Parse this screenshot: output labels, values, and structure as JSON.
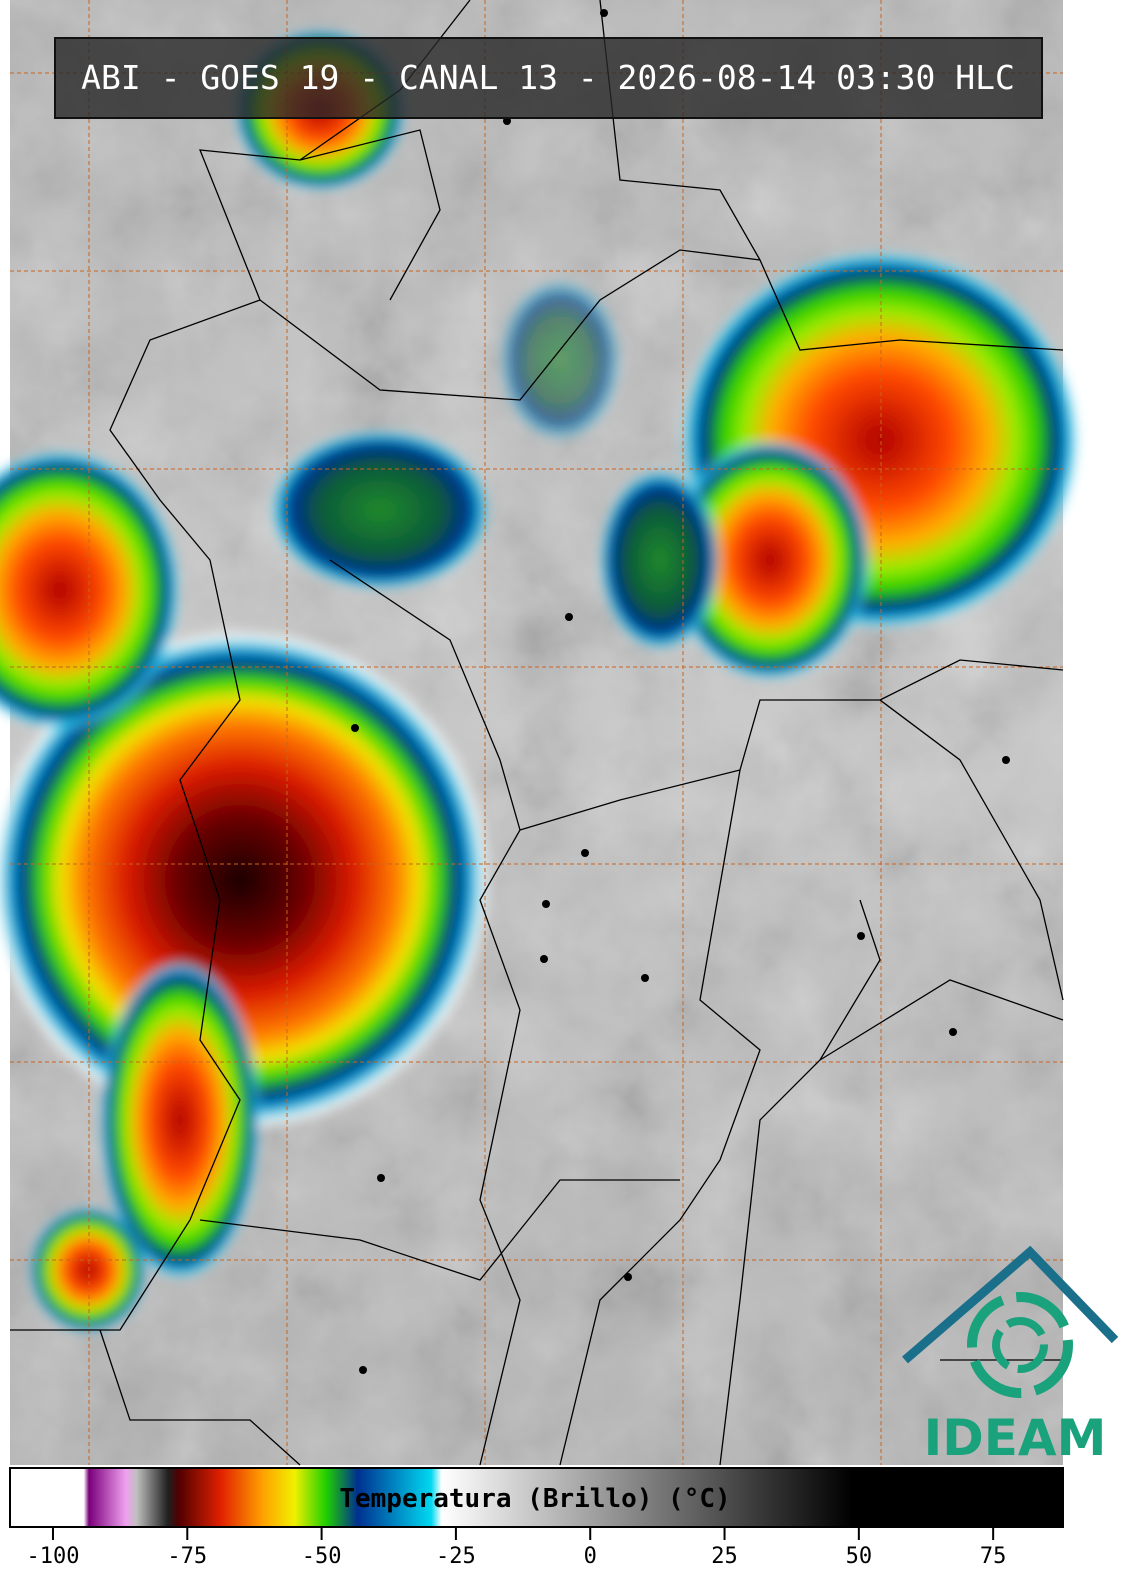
{
  "header": {
    "title": "ABI - GOES 19 - CANAL 13 - 2026-08-14 03:30 HLC"
  },
  "colorbar": {
    "label": "Temperatura (Brillo) (°C)",
    "range": [
      -108,
      88
    ],
    "ticks": [
      -100,
      -75,
      -50,
      -25,
      0,
      25,
      50,
      75
    ]
  },
  "logo": {
    "text": "IDEAM"
  }
}
